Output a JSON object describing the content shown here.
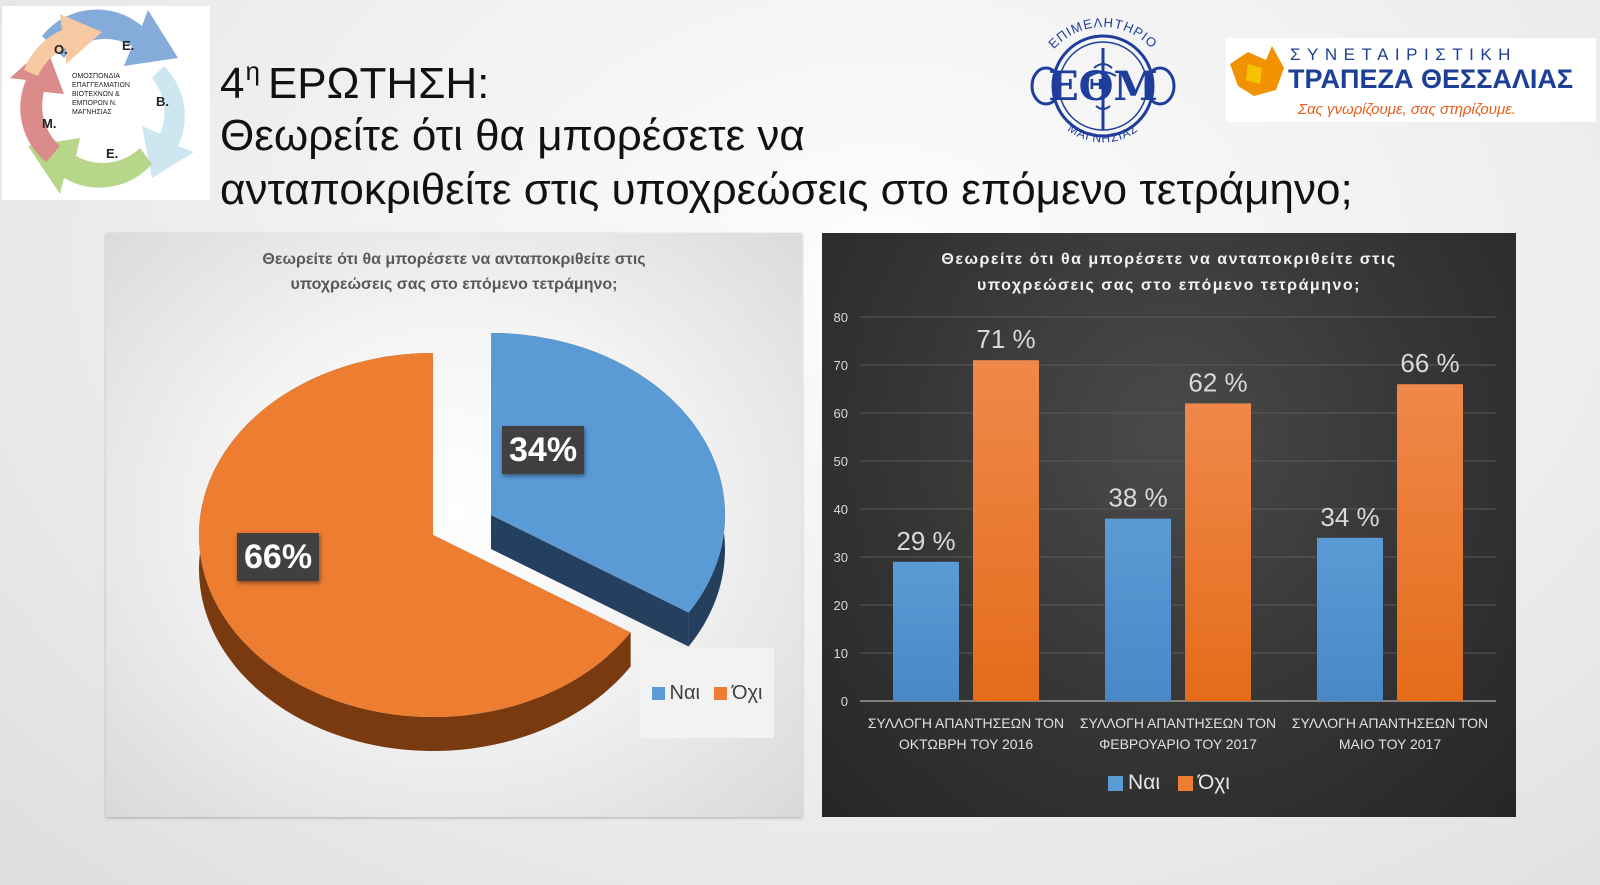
{
  "header": {
    "question_number": "4",
    "question_suffix": "η",
    "question_word": "ΕΡΩΤΗΣΗ:",
    "question_line1": "Θεωρείτε ότι θα μπορέσετε να",
    "question_line2": "ανταποκριθείτε στις υποχρεώσεις στο επόμενο τετράμηνο;"
  },
  "logos": {
    "omo": {
      "letters": [
        "Ο.",
        "Ε.",
        "Β.",
        "Ε.",
        "Μ."
      ],
      "text_lines": [
        "ΟΜΟΣΠΟΝΔΙΑ",
        "ΕΠΑΓΓΕΛΜΑΤΙΩΝ",
        "ΒΙΟΤΕΧΝΩΝ &",
        "ΕΜΠΟΡΩΝ Ν.",
        "ΜΑΓΝΗΣΙΑΣ"
      ]
    },
    "eom": {
      "arc_top": "ΕΠΙΜΕΛΗΤΗΡΙΟ",
      "center": "ΕΘΜ",
      "arc_bottom": "ΜΑΓΝΗΣΙΑΣ"
    },
    "bank": {
      "line1": "ΣΥΝΕΤΑΙΡΙΣΤΙΚΗ",
      "line2": "ΤΡΑΠΕΖΑ ΘΕΣΣΑΛΙΑΣ",
      "slogan": "Σας γνωρίζουμε, σας στηρίζουμε."
    }
  },
  "colors": {
    "nai": "#5b9bd5",
    "oxi": "#ed7d31"
  },
  "chart_data": [
    {
      "type": "pie",
      "title_lines": [
        "Θεωρείτε ότι θα μπορέσετε να ανταποκριθείτε στις",
        "υποχρεώσεις σας στο επόμενο τετράμηνο;"
      ],
      "slices": [
        {
          "name": "Ναι",
          "value": 34,
          "label": "34%"
        },
        {
          "name": "Όχι",
          "value": 66,
          "label": "66%"
        }
      ],
      "legend": [
        "Ναι",
        "Όχι"
      ],
      "legend_position": "bottom-right",
      "style": "3d-exploded"
    },
    {
      "type": "bar",
      "title_lines": [
        "Θεωρείτε ότι θα μπορέσετε να ανταποκριθείτε στις",
        "υποχρεώσεις σας στο επόμενο τετράμηνο;"
      ],
      "categories": [
        [
          "ΣΥΛΛΟΓΗ ΑΠΑΝΤΗΣΕΩΝ ΤΟΝ",
          "ΟΚΤΩΒΡΗ ΤΟΥ 2016"
        ],
        [
          "ΣΥΛΛΟΓΗ ΑΠΑΝΤΗΣΕΩΝ ΤΟΝ",
          "ΦΕΒΡΟΥΑΡΙΟ ΤΟΥ 2017"
        ],
        [
          "ΣΥΛΛΟΓΗ ΑΠΑΝΤΗΣΕΩΝ ΤΟΝ",
          "ΜΑΙΟ ΤΟΥ 2017"
        ]
      ],
      "series": [
        {
          "name": "Ναι",
          "values": [
            29,
            38,
            34
          ],
          "labels": [
            "29 %",
            "38 %",
            "34 %"
          ]
        },
        {
          "name": "Όχι",
          "values": [
            71,
            62,
            66
          ],
          "labels": [
            "71 %",
            "62 %",
            "66 %"
          ]
        }
      ],
      "ylim": [
        0,
        80
      ],
      "yticks": [
        "0",
        "10",
        "20",
        "30",
        "40",
        "50",
        "60",
        "70",
        "80"
      ],
      "grid": true,
      "legend": [
        "Ναι",
        "Όχι"
      ],
      "legend_position": "bottom"
    }
  ]
}
